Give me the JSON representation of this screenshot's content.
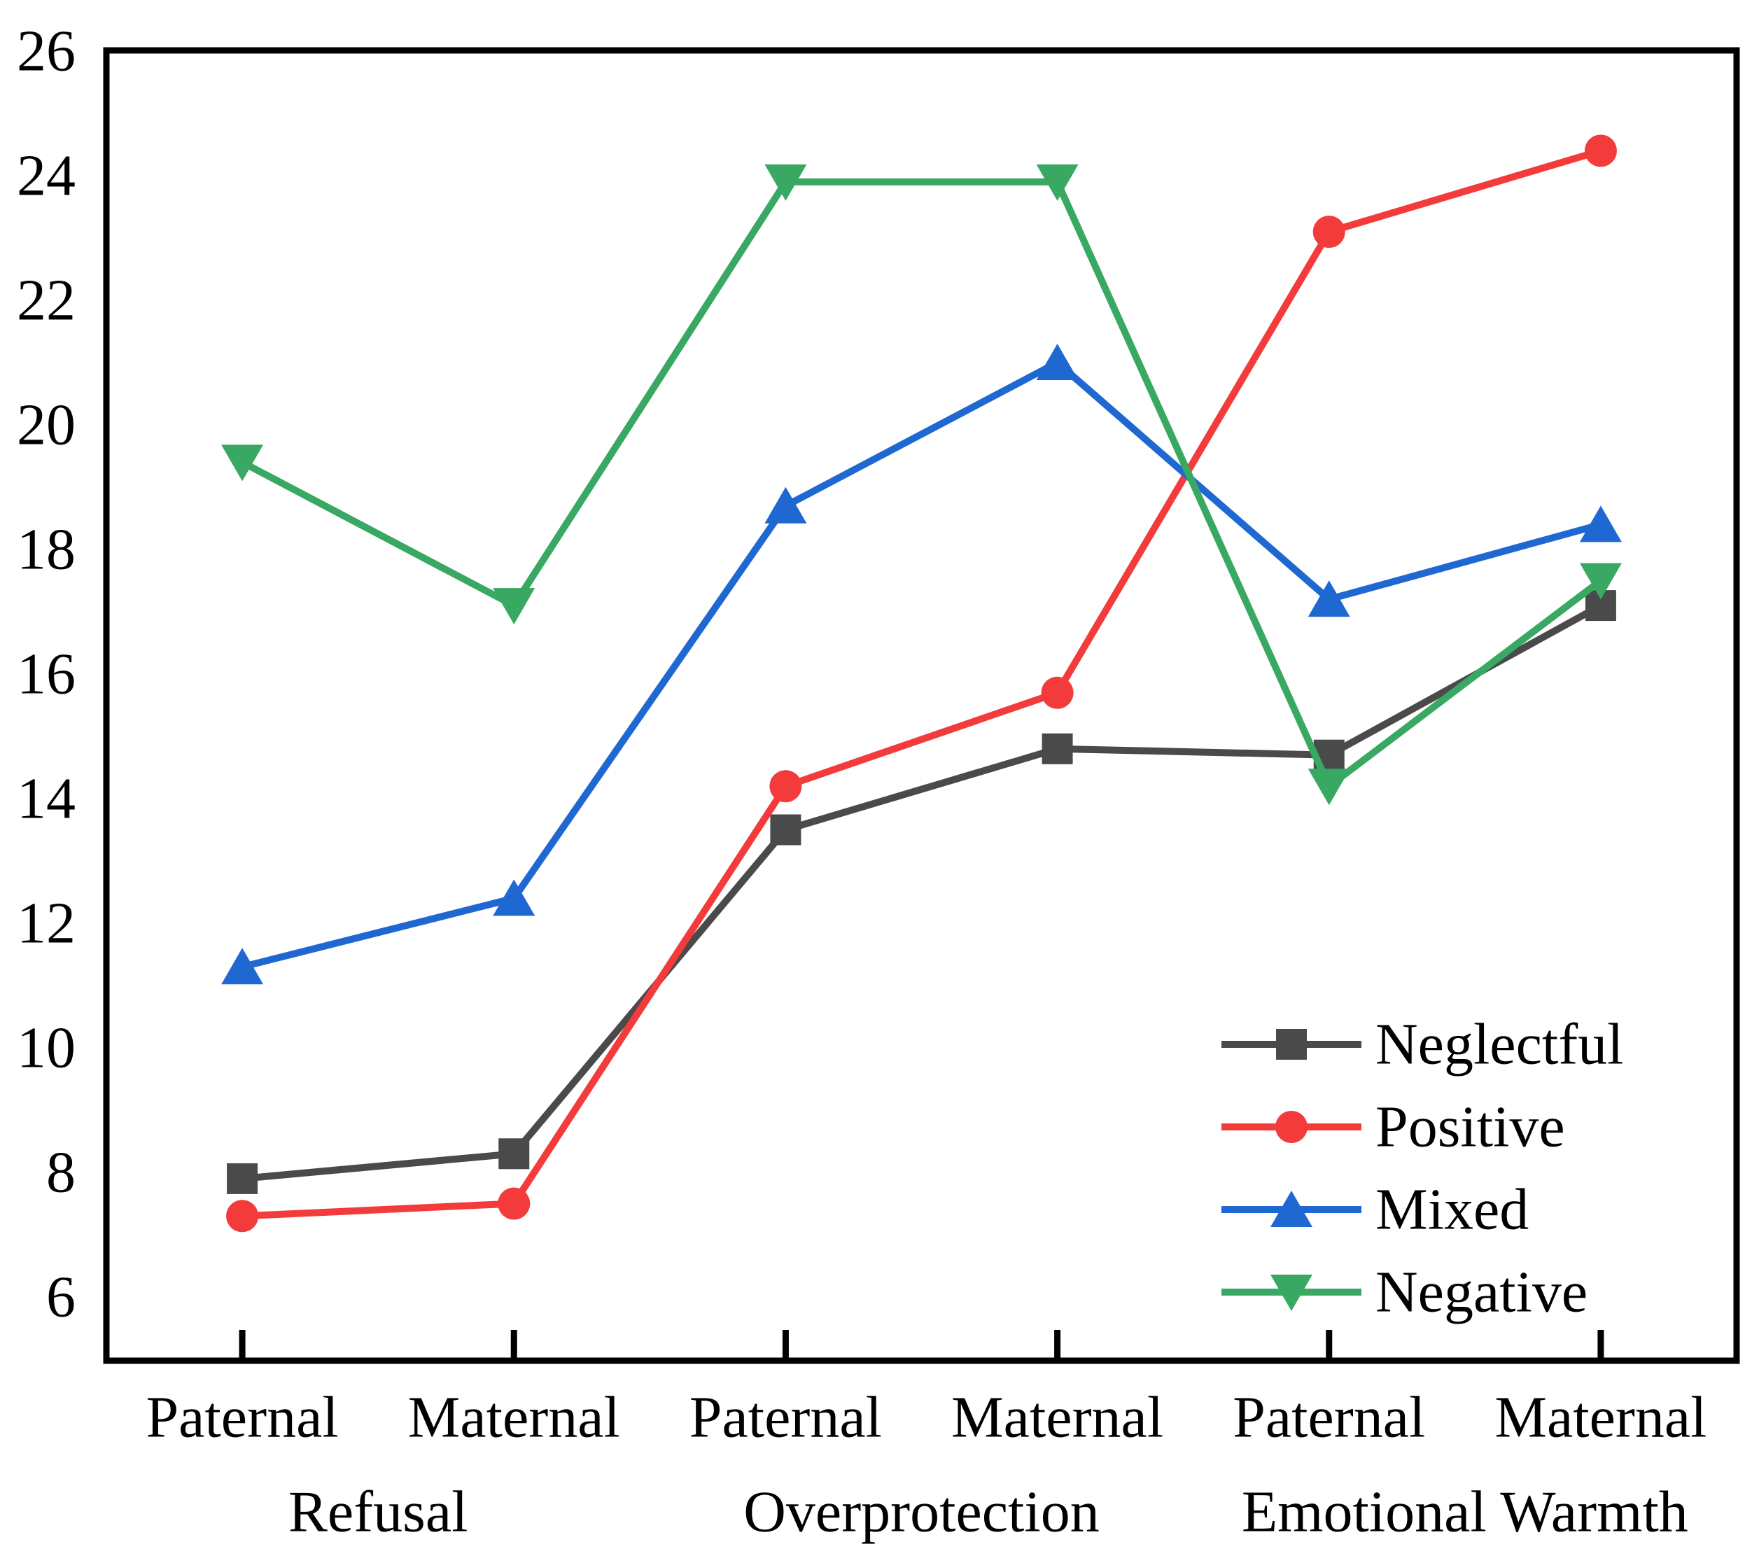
{
  "figure": {
    "background": "#ffffff",
    "axis_color": "#000000"
  },
  "chart_data": {
    "type": "line",
    "title": "",
    "xlabel": "",
    "ylabel": "",
    "ylim": [
      5,
      26
    ],
    "yticks": [
      6,
      8,
      10,
      12,
      14,
      16,
      18,
      20,
      22,
      24,
      26
    ],
    "grid": false,
    "categories": [
      "Paternal",
      "Maternal",
      "Paternal",
      "Maternal",
      "Paternal",
      "Maternal"
    ],
    "x_group_labels": [
      {
        "label": "Refusal",
        "span": [
          0,
          1
        ]
      },
      {
        "label": "Overprotection",
        "span": [
          2,
          3
        ]
      },
      {
        "label": "Emotional Warmth",
        "span": [
          4,
          5
        ]
      }
    ],
    "series": [
      {
        "name": "Neglectful",
        "color": "#4a4a4a",
        "marker": "square",
        "values": [
          7.9,
          8.3,
          13.5,
          14.8,
          14.7,
          17.1
        ]
      },
      {
        "name": "Positive",
        "color": "#f43b3b",
        "marker": "circle",
        "values": [
          7.3,
          7.5,
          14.2,
          15.7,
          23.1,
          24.4
        ]
      },
      {
        "name": "Mixed",
        "color": "#1f68d1",
        "marker": "triangle-up",
        "values": [
          11.3,
          12.4,
          18.7,
          21.0,
          17.2,
          18.4
        ]
      },
      {
        "name": "Negative",
        "color": "#39a863",
        "marker": "triangle-down",
        "values": [
          19.4,
          17.1,
          23.9,
          23.9,
          14.2,
          17.5
        ]
      }
    ],
    "legend": {
      "position": "bottom-right",
      "entries": [
        "Neglectful",
        "Positive",
        "Mixed",
        "Negative"
      ]
    }
  }
}
